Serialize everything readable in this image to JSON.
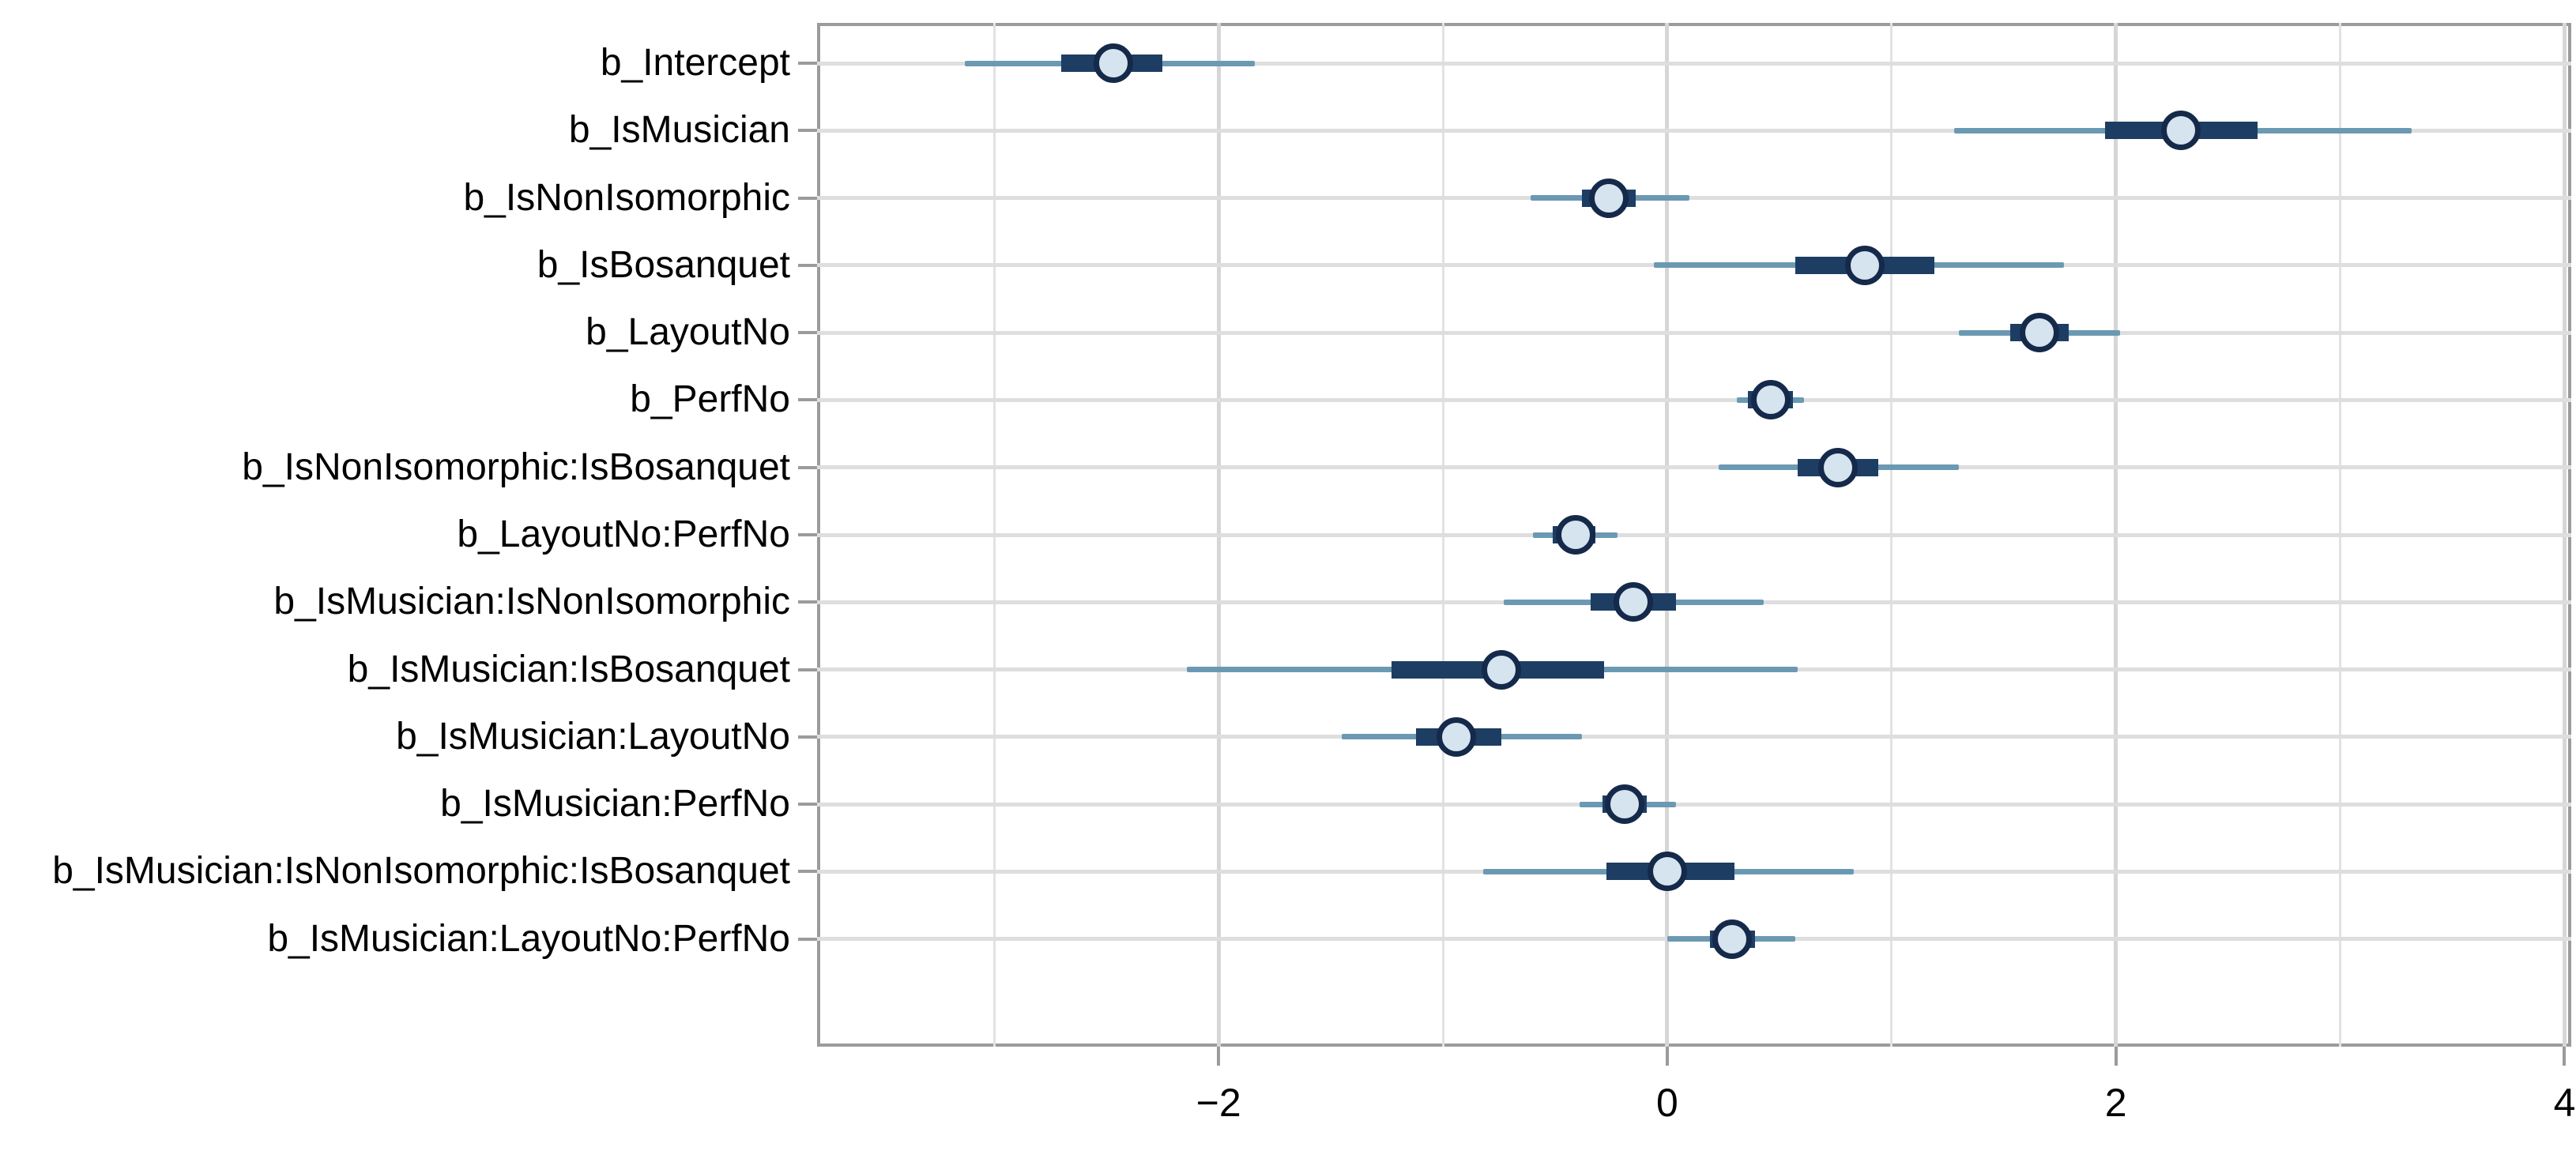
{
  "figure": {
    "background": "#ffffff"
  },
  "chart_data": {
    "type": "scatter",
    "subtype": "forest-pointrange",
    "orientation": "horizontal",
    "title": "",
    "xlabel": "",
    "ylabel": "",
    "grid": true,
    "legend": false,
    "xlim": [
      -3.79,
      4.03
    ],
    "x_ticks": [
      {
        "value": -2,
        "label": "−2"
      },
      {
        "value": 0,
        "label": "0"
      },
      {
        "value": 2,
        "label": "2"
      },
      {
        "value": 4,
        "label": "4"
      }
    ],
    "x_minor_gridlines": [
      -3,
      -1,
      1,
      3
    ],
    "categories": [
      "b_Intercept",
      "b_IsMusician",
      "b_IsNonIsomorphic",
      "b_IsBosanquet",
      "b_LayoutNo",
      "b_PerfNo",
      "b_IsNonIsomorphic:IsBosanquet",
      "b_LayoutNo:PerfNo",
      "b_IsMusician:IsNonIsomorphic",
      "b_IsMusician:IsBosanquet",
      "b_IsMusician:LayoutNo",
      "b_IsMusician:PerfNo",
      "b_IsMusician:IsNonIsomorphic:IsBosanquet",
      "b_IsMusician:LayoutNo:PerfNo"
    ],
    "rows": [
      {
        "label": "b_Intercept",
        "point": -2.47,
        "inner": [
          -2.7,
          -2.25
        ],
        "outer": [
          -3.13,
          -1.84
        ]
      },
      {
        "label": "b_IsMusician",
        "point": 2.29,
        "inner": [
          1.95,
          2.63
        ],
        "outer": [
          1.28,
          3.32
        ]
      },
      {
        "label": "b_IsNonIsomorphic",
        "point": -0.26,
        "inner": [
          -0.38,
          -0.14
        ],
        "outer": [
          -0.61,
          0.1
        ]
      },
      {
        "label": "b_IsBosanquet",
        "point": 0.88,
        "inner": [
          0.57,
          1.19
        ],
        "outer": [
          -0.06,
          1.77
        ]
      },
      {
        "label": "b_LayoutNo",
        "point": 1.66,
        "inner": [
          1.53,
          1.79
        ],
        "outer": [
          1.3,
          2.02
        ]
      },
      {
        "label": "b_PerfNo",
        "point": 0.46,
        "inner": [
          0.36,
          0.56
        ],
        "outer": [
          0.31,
          0.61
        ]
      },
      {
        "label": "b_IsNonIsomorphic:IsBosanquet",
        "point": 0.76,
        "inner": [
          0.58,
          0.94
        ],
        "outer": [
          0.23,
          1.3
        ]
      },
      {
        "label": "b_LayoutNo:PerfNo",
        "point": -0.41,
        "inner": [
          -0.51,
          -0.32
        ],
        "outer": [
          -0.6,
          -0.22
        ]
      },
      {
        "label": "b_IsMusician:IsNonIsomorphic",
        "point": -0.15,
        "inner": [
          -0.34,
          0.04
        ],
        "outer": [
          -0.73,
          0.43
        ]
      },
      {
        "label": "b_IsMusician:IsBosanquet",
        "point": -0.74,
        "inner": [
          -1.23,
          -0.28
        ],
        "outer": [
          -2.14,
          0.58
        ]
      },
      {
        "label": "b_IsMusician:LayoutNo",
        "point": -0.94,
        "inner": [
          -1.12,
          -0.74
        ],
        "outer": [
          -1.45,
          -0.38
        ]
      },
      {
        "label": "b_IsMusician:PerfNo",
        "point": -0.19,
        "inner": [
          -0.29,
          -0.09
        ],
        "outer": [
          -0.39,
          0.04
        ]
      },
      {
        "label": "b_IsMusician:IsNonIsomorphic:IsBosanquet",
        "point": 0.0,
        "inner": [
          -0.27,
          0.3
        ],
        "outer": [
          -0.82,
          0.83
        ]
      },
      {
        "label": "b_IsMusician:LayoutNo:PerfNo",
        "point": 0.29,
        "inner": [
          0.19,
          0.39
        ],
        "outer": [
          0.0,
          0.57
        ]
      }
    ],
    "colors": {
      "point_fill": "#d6e4f0",
      "point_stroke": "#15294a",
      "inner_bar": "#1e3d63",
      "outer_line": "#6b99b3",
      "row_gridline": "#dedede",
      "major_gridline": "#d6d6d6",
      "minor_gridline": "#e2e2e2",
      "panel_border": "#9b9b9b",
      "tick_mark": "#9b9b9b",
      "text": "#000000",
      "background": "#ffffff"
    }
  }
}
